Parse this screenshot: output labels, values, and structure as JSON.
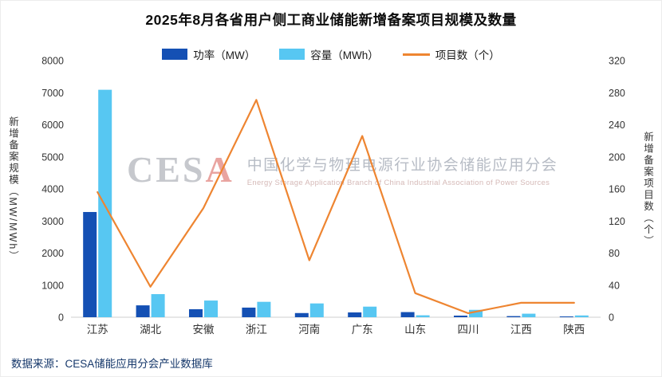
{
  "title": "2025年8月各省用户侧工商业储能新增备案项目规模及数量",
  "legend": [
    {
      "label": "功率（MW）",
      "type": "bar",
      "color": "#1450b4"
    },
    {
      "label": "容量（MWh）",
      "type": "bar",
      "color": "#57c7f2"
    },
    {
      "label": "项目数（个）",
      "type": "line",
      "color": "#ee8531"
    }
  ],
  "left_axis": {
    "label": "新增备案规模（MW/MWh）",
    "min": 0,
    "max": 8000,
    "step": 1000
  },
  "right_axis": {
    "label": "新增备案项目数（个）",
    "min": 0,
    "max": 320,
    "step": 40
  },
  "watermark": {
    "logo_prefix": "CES",
    "logo_accent": "A",
    "cn": "中国化学与物理电源行业协会储能应用分会",
    "en": "Energy Storage Application Branch of China Industrial Association of Power Sources"
  },
  "source": "数据来源：CESA储能应用分会产业数据库",
  "chart_data": {
    "type": "bar",
    "categories": [
      "江苏",
      "湖北",
      "安徽",
      "浙江",
      "河南",
      "广东",
      "山东",
      "四川",
      "江西",
      "陕西"
    ],
    "series": [
      {
        "name": "功率（MW）",
        "type": "bar",
        "axis": "left",
        "color": "#1450b4",
        "values": [
          3280,
          370,
          250,
          300,
          130,
          150,
          160,
          50,
          35,
          15
        ]
      },
      {
        "name": "容量（MWh）",
        "type": "bar",
        "axis": "left",
        "color": "#57c7f2",
        "values": [
          7090,
          720,
          520,
          480,
          430,
          330,
          60,
          230,
          110,
          55
        ]
      },
      {
        "name": "项目数（个）",
        "type": "line",
        "axis": "right",
        "color": "#ee8531",
        "values": [
          156,
          38,
          136,
          271,
          71,
          226,
          30,
          5,
          18,
          18
        ]
      }
    ],
    "left_ylim": [
      0,
      8000
    ],
    "right_ylim": [
      0,
      320
    ],
    "grid": false,
    "legend_position": "top"
  }
}
